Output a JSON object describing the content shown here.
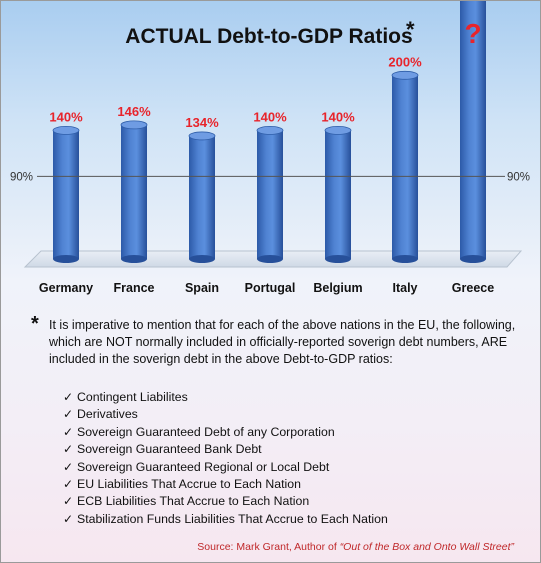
{
  "chart_data": {
    "type": "bar",
    "title": "ACTUAL Debt-to-GDP Ratios",
    "title_marker": "*",
    "categories": [
      "Germany",
      "France",
      "Spain",
      "Portugal",
      "Belgium",
      "Italy",
      "Greece"
    ],
    "values": [
      140,
      146,
      134,
      140,
      140,
      200,
      null
    ],
    "value_labels": [
      "140%",
      "146%",
      "134%",
      "140%",
      "140%",
      "200%",
      "?"
    ],
    "reference_line": {
      "value": 90,
      "label": "90%"
    },
    "ylim": [
      0,
      270
    ],
    "bar_color": "#3f71c4",
    "label_color": "#e8242b"
  },
  "note": {
    "marker": "*",
    "text": "It is imperative to mention that for each of the above nations in the EU, the following, which are NOT normally included in officially-reported soverign debt numbers, ARE included in the soverign debt in the above Debt-to-GDP ratios:"
  },
  "checklist": [
    "Contingent Liabilites",
    "Derivatives",
    "Sovereign Guaranteed Debt of any Corporation",
    "Sovereign Guaranteed Bank Debt",
    "Sovereign Guaranteed Regional or Local Debt",
    "EU Liabilities That Accrue to Each Nation",
    "ECB Liabilities That Accrue to Each Nation",
    "Stabilization Funds Liabilities That Accrue to Each Nation"
  ],
  "check_icon": "check-mark-icon",
  "source": {
    "prefix": "Source:  Mark Grant, Author of ",
    "book": "“Out of the Box and Onto Wall Street”"
  }
}
